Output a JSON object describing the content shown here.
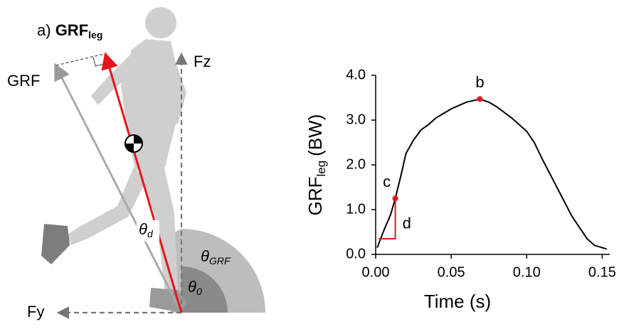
{
  "diagram": {
    "title": {
      "prefix": "a)",
      "main": "GRF",
      "sub": "leg"
    },
    "grf_label": "GRF",
    "fz_label": "Fz",
    "fy_label": "Fy",
    "theta_d": {
      "symbol": "θ",
      "sub": "d"
    },
    "theta_grf": {
      "symbol": "θ",
      "sub": "GRF"
    },
    "theta_0": {
      "symbol": "θ",
      "sub": "0"
    }
  },
  "chart_data": {
    "type": "line",
    "x_label": "Time (s)",
    "y_label": {
      "main": "GRF",
      "sub": "leg",
      "unit": "(BW)"
    },
    "x": [
      0.001,
      0.005,
      0.01,
      0.013,
      0.017,
      0.02,
      0.025,
      0.03,
      0.035,
      0.04,
      0.05,
      0.06,
      0.069,
      0.075,
      0.08,
      0.09,
      0.1,
      0.105,
      0.11,
      0.12,
      0.13,
      0.14,
      0.145,
      0.153
    ],
    "series": [
      {
        "color": "#000000",
        "values": [
          0.15,
          0.5,
          0.9,
          1.25,
          1.8,
          2.25,
          2.55,
          2.78,
          2.9,
          3.05,
          3.25,
          3.4,
          3.47,
          3.4,
          3.3,
          3.05,
          2.75,
          2.5,
          2.15,
          1.5,
          0.85,
          0.35,
          0.2,
          0.12
        ]
      }
    ],
    "annotations": [
      {
        "text": "b",
        "x": 0.069,
        "y": 3.47,
        "color": "#e8141c"
      },
      {
        "text": "c",
        "x": 0.013,
        "y": 1.25,
        "color": "#e8141c"
      }
    ],
    "slope_marker": {
      "text": "d",
      "x0": 0.002,
      "y0": 0.35,
      "x1": 0.013,
      "y1": 1.25,
      "color": "#e8141c"
    },
    "xlim": [
      0,
      0.155
    ],
    "ylim": [
      0,
      4.0
    ],
    "xticks": [
      {
        "value": 0,
        "label": "0.00"
      },
      0.05,
      {
        "value": 0.1,
        "label": "0.10"
      },
      0.15
    ],
    "yticks": [
      {
        "value": 0,
        "label": "0.0"
      },
      {
        "value": 1,
        "label": "1.0"
      },
      {
        "value": 2,
        "label": "2.0"
      },
      {
        "value": 3,
        "label": "3.0"
      },
      {
        "value": 4,
        "label": "4.0"
      }
    ]
  }
}
